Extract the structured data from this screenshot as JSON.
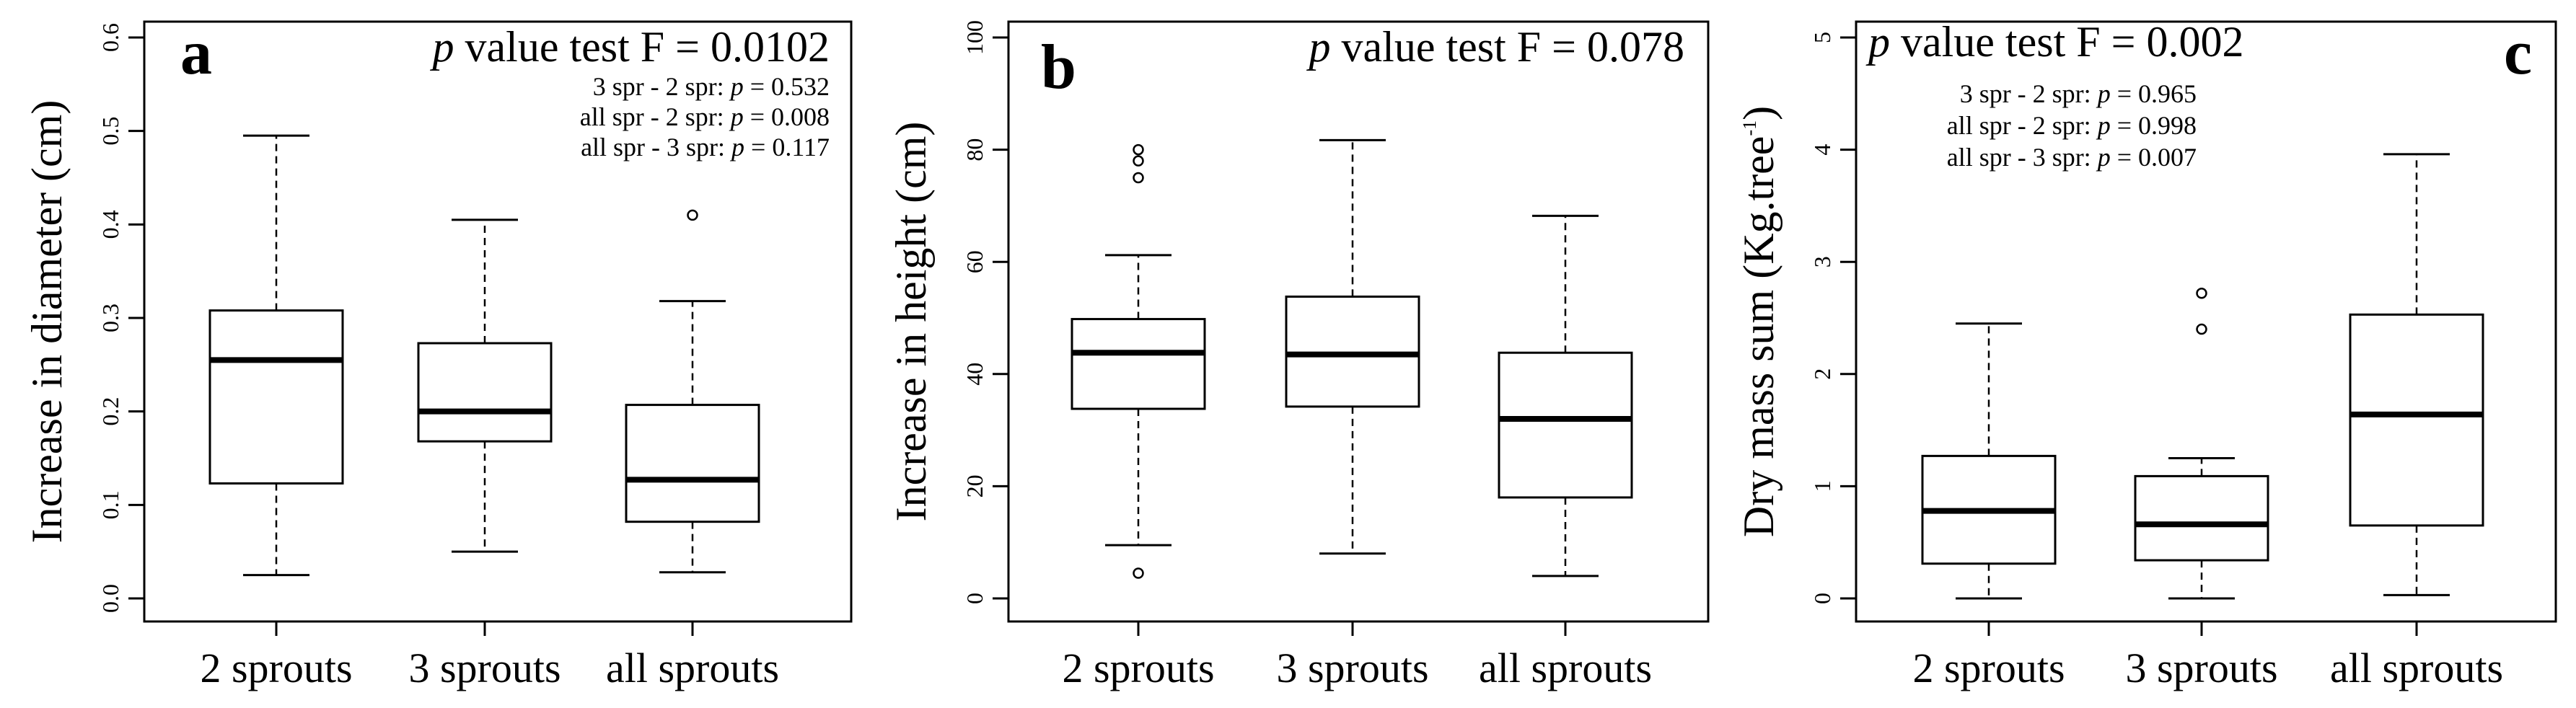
{
  "chart_data": [
    {
      "type": "boxplot",
      "panel_label": "a",
      "ylabel": "Increase in diameter (cm)",
      "ylim": [
        0.0,
        0.6
      ],
      "yticks": [
        0.0,
        0.1,
        0.2,
        0.3,
        0.4,
        0.5,
        0.6
      ],
      "ytick_labels": [
        "0.0",
        "0.1",
        "0.2",
        "0.3",
        "0.4",
        "0.5",
        "0.6"
      ],
      "categories": [
        "2 sprouts",
        "3 sprouts",
        "all sprouts"
      ],
      "boxes": [
        {
          "whisker_low": 0.025,
          "q1": 0.123,
          "median": 0.255,
          "q3": 0.308,
          "whisker_high": 0.495,
          "outliers": []
        },
        {
          "whisker_low": 0.05,
          "q1": 0.168,
          "median": 0.2,
          "q3": 0.273,
          "whisker_high": 0.405,
          "outliers": []
        },
        {
          "whisker_low": 0.028,
          "q1": 0.082,
          "median": 0.127,
          "q3": 0.207,
          "whisker_high": 0.318,
          "outliers": [
            0.41
          ]
        }
      ],
      "ftest": {
        "italic": "p",
        "text": " value test F = 0.0102"
      },
      "pairwise": [
        {
          "label": "3 spr - 2 spr: ",
          "p": "p",
          "value": " = 0.532"
        },
        {
          "label": "all spr - 2 spr: ",
          "p": "p",
          "value": " = 0.008"
        },
        {
          "label": "all spr - 3 spr: ",
          "p": "p",
          "value": " = 0.117"
        }
      ]
    },
    {
      "type": "boxplot",
      "panel_label": "b",
      "ylabel": "Increase in height (cm)",
      "ylim": [
        0,
        100
      ],
      "yticks": [
        0,
        20,
        40,
        60,
        80,
        100
      ],
      "ytick_labels": [
        "0",
        "20",
        "40",
        "60",
        "80",
        "100"
      ],
      "categories": [
        "2 sprouts",
        "3 sprouts",
        "all sprouts"
      ],
      "boxes": [
        {
          "whisker_low": 9.5,
          "q1": 33.8,
          "median": 43.8,
          "q3": 49.8,
          "whisker_high": 61.2,
          "outliers": [
            4.5,
            75,
            78,
            80
          ]
        },
        {
          "whisker_low": 8,
          "q1": 34.2,
          "median": 43.5,
          "q3": 53.8,
          "whisker_high": 81.7,
          "outliers": []
        },
        {
          "whisker_low": 4,
          "q1": 18,
          "median": 32,
          "q3": 43.8,
          "whisker_high": 68.2,
          "outliers": []
        }
      ],
      "ftest": {
        "italic": "p",
        "text": " value test F = 0.078"
      },
      "pairwise": []
    },
    {
      "type": "boxplot",
      "panel_label": "c",
      "ylabel_main": "Dry mass sum (Kg.tree",
      "ylabel_sup": "-1",
      "ylabel_end": ")",
      "ylim": [
        0,
        5
      ],
      "yticks": [
        0,
        1,
        2,
        3,
        4,
        5
      ],
      "ytick_labels": [
        "0",
        "1",
        "2",
        "3",
        "4",
        "5"
      ],
      "categories": [
        "2 sprouts",
        "3 sprouts",
        "all sprouts"
      ],
      "boxes": [
        {
          "whisker_low": 0.0,
          "q1": 0.31,
          "median": 0.78,
          "q3": 1.27,
          "whisker_high": 2.45,
          "outliers": []
        },
        {
          "whisker_low": 0.0,
          "q1": 0.34,
          "median": 0.66,
          "q3": 1.09,
          "whisker_high": 1.25,
          "outliers": [
            2.4,
            2.72
          ]
        },
        {
          "whisker_low": 0.03,
          "q1": 0.65,
          "median": 1.64,
          "q3": 2.53,
          "whisker_high": 3.96,
          "outliers": []
        }
      ],
      "ftest": {
        "italic": "p",
        "text": " value test F = 0.002"
      },
      "pairwise": [
        {
          "label": "3 spr - 2 spr: ",
          "p": "p",
          "value": " = 0.965"
        },
        {
          "label": "all spr - 2 spr: ",
          "p": "p",
          "value": " = 0.998"
        },
        {
          "label": "all spr - 3 spr: ",
          "p": "p",
          "value": " = 0.007"
        }
      ]
    }
  ]
}
